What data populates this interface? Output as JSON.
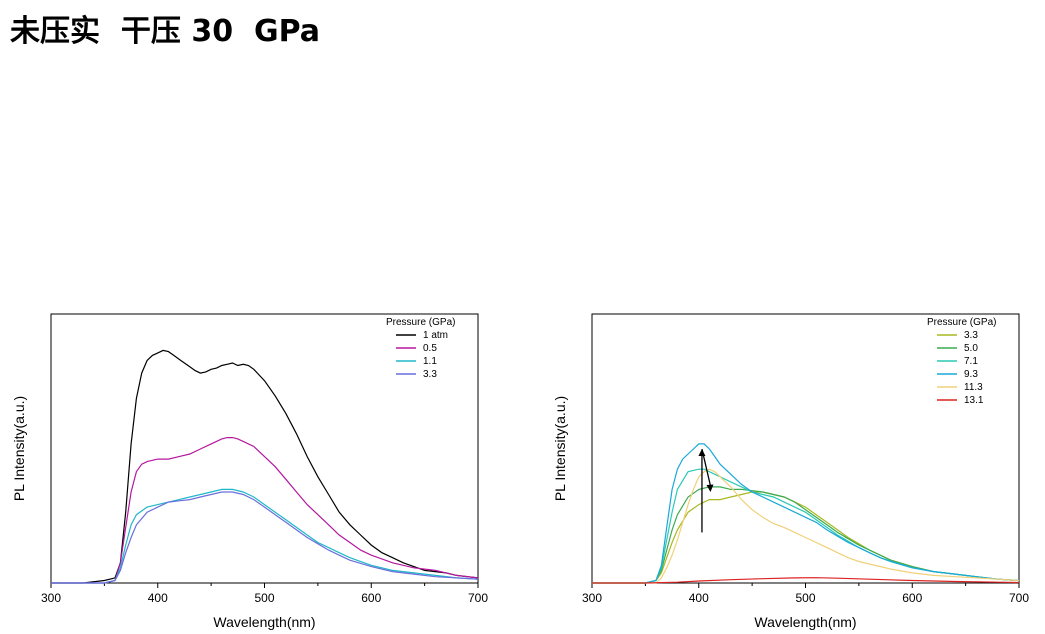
{
  "title": "未压实  干压 30  GPa",
  "chart_data": [
    {
      "type": "line",
      "xlabel": "Wavelength(nm)",
      "ylabel": "PL Intensity(a.u.)",
      "xlim": [
        300,
        700
      ],
      "ylim": [
        0,
        1.0
      ],
      "xticks": [
        "300",
        "400",
        "500",
        "600",
        "700"
      ],
      "legend_title": "Pressure (GPa)",
      "legend_position": "top-right",
      "series": [
        {
          "name": "1 atm",
          "color": "#000000",
          "x": [
            300,
            330,
            350,
            360,
            365,
            370,
            375,
            380,
            385,
            390,
            395,
            400,
            405,
            410,
            415,
            420,
            425,
            430,
            435,
            440,
            445,
            450,
            455,
            460,
            465,
            470,
            475,
            480,
            485,
            490,
            500,
            510,
            520,
            530,
            540,
            550,
            560,
            570,
            580,
            590,
            600,
            610,
            620,
            630,
            640,
            650,
            660,
            670,
            680,
            690,
            700
          ],
          "y": [
            0,
            0,
            0.01,
            0.02,
            0.08,
            0.28,
            0.55,
            0.73,
            0.83,
            0.88,
            0.9,
            0.91,
            0.92,
            0.915,
            0.9,
            0.885,
            0.87,
            0.855,
            0.84,
            0.83,
            0.835,
            0.845,
            0.85,
            0.86,
            0.865,
            0.87,
            0.86,
            0.865,
            0.86,
            0.845,
            0.8,
            0.74,
            0.67,
            0.59,
            0.5,
            0.42,
            0.35,
            0.28,
            0.23,
            0.19,
            0.15,
            0.12,
            0.1,
            0.08,
            0.065,
            0.05,
            0.045,
            0.04,
            0.03,
            0.025,
            0.02
          ]
        },
        {
          "name": "0.5",
          "color": "#b5179e",
          "x": [
            300,
            330,
            350,
            360,
            365,
            370,
            375,
            380,
            385,
            390,
            400,
            410,
            420,
            430,
            440,
            450,
            460,
            465,
            470,
            475,
            480,
            490,
            500,
            510,
            520,
            530,
            540,
            550,
            560,
            570,
            580,
            590,
            600,
            620,
            640,
            660,
            680,
            700
          ],
          "y": [
            0,
            0,
            0,
            0.01,
            0.08,
            0.22,
            0.36,
            0.44,
            0.47,
            0.48,
            0.49,
            0.49,
            0.5,
            0.51,
            0.53,
            0.55,
            0.57,
            0.575,
            0.575,
            0.57,
            0.56,
            0.54,
            0.5,
            0.46,
            0.41,
            0.36,
            0.31,
            0.27,
            0.23,
            0.19,
            0.16,
            0.13,
            0.11,
            0.08,
            0.06,
            0.05,
            0.03,
            0.02
          ]
        },
        {
          "name": "1.1",
          "color": "#20b8c8",
          "x": [
            300,
            330,
            350,
            360,
            365,
            370,
            375,
            380,
            390,
            400,
            410,
            420,
            430,
            440,
            450,
            460,
            465,
            470,
            480,
            490,
            500,
            510,
            520,
            530,
            540,
            550,
            560,
            570,
            580,
            600,
            620,
            640,
            660,
            680,
            700
          ],
          "y": [
            0,
            0,
            0,
            0.01,
            0.06,
            0.15,
            0.23,
            0.27,
            0.3,
            0.31,
            0.32,
            0.33,
            0.34,
            0.35,
            0.36,
            0.37,
            0.37,
            0.37,
            0.36,
            0.34,
            0.31,
            0.28,
            0.25,
            0.22,
            0.19,
            0.16,
            0.14,
            0.12,
            0.1,
            0.07,
            0.05,
            0.04,
            0.03,
            0.02,
            0.015
          ]
        },
        {
          "name": "3.3",
          "color": "#6a6fdc",
          "x": [
            300,
            330,
            350,
            360,
            365,
            370,
            375,
            380,
            390,
            400,
            410,
            420,
            430,
            440,
            450,
            460,
            470,
            480,
            490,
            500,
            510,
            520,
            530,
            540,
            550,
            560,
            570,
            580,
            600,
            620,
            640,
            660,
            680,
            700
          ],
          "y": [
            0,
            0,
            0,
            0.01,
            0.05,
            0.12,
            0.18,
            0.23,
            0.28,
            0.3,
            0.32,
            0.325,
            0.33,
            0.34,
            0.35,
            0.36,
            0.36,
            0.35,
            0.33,
            0.3,
            0.27,
            0.24,
            0.21,
            0.18,
            0.155,
            0.13,
            0.11,
            0.09,
            0.065,
            0.045,
            0.035,
            0.025,
            0.02,
            0.015
          ]
        }
      ]
    },
    {
      "type": "line",
      "xlabel": "Wavelength(nm)",
      "ylabel": "PL Intensity(a.u.)",
      "xlim": [
        300,
        700
      ],
      "ylim": [
        0,
        1.0
      ],
      "xticks": [
        "300",
        "400",
        "500",
        "600",
        "700"
      ],
      "legend_title": "Pressure (GPa)",
      "legend_position": "top-right",
      "annotations": [
        "arrow up at ~403 nm",
        "arrow down at ~410 nm"
      ],
      "series": [
        {
          "name": "3.3",
          "color": "#a8b820",
          "x": [
            300,
            350,
            360,
            365,
            370,
            375,
            380,
            390,
            400,
            410,
            420,
            430,
            440,
            450,
            460,
            470,
            480,
            490,
            500,
            510,
            520,
            530,
            540,
            550,
            560,
            570,
            580,
            600,
            620,
            640,
            660,
            680,
            700
          ],
          "y": [
            0,
            0,
            0.01,
            0.04,
            0.1,
            0.16,
            0.21,
            0.28,
            0.31,
            0.33,
            0.33,
            0.34,
            0.35,
            0.36,
            0.36,
            0.35,
            0.34,
            0.32,
            0.3,
            0.27,
            0.24,
            0.21,
            0.18,
            0.155,
            0.13,
            0.11,
            0.09,
            0.065,
            0.045,
            0.035,
            0.025,
            0.015,
            0.01
          ]
        },
        {
          "name": "5.0",
          "color": "#3caa50",
          "x": [
            300,
            350,
            360,
            365,
            370,
            375,
            380,
            390,
            400,
            410,
            420,
            430,
            440,
            450,
            460,
            470,
            480,
            490,
            500,
            510,
            520,
            530,
            540,
            550,
            560,
            570,
            580,
            600,
            620,
            640,
            660,
            680,
            700
          ],
          "y": [
            0,
            0,
            0.01,
            0.05,
            0.13,
            0.21,
            0.27,
            0.34,
            0.37,
            0.38,
            0.38,
            0.37,
            0.37,
            0.365,
            0.36,
            0.35,
            0.34,
            0.32,
            0.29,
            0.26,
            0.23,
            0.2,
            0.175,
            0.15,
            0.13,
            0.11,
            0.09,
            0.065,
            0.045,
            0.035,
            0.025,
            0.015,
            0.01
          ]
        },
        {
          "name": "7.1",
          "color": "#2cc9b5",
          "x": [
            300,
            350,
            360,
            365,
            370,
            375,
            380,
            390,
            400,
            405,
            410,
            420,
            430,
            440,
            450,
            460,
            470,
            480,
            490,
            500,
            510,
            520,
            530,
            540,
            550,
            560,
            570,
            580,
            600,
            620,
            640,
            660,
            680,
            700
          ],
          "y": [
            0,
            0,
            0.01,
            0.06,
            0.17,
            0.28,
            0.37,
            0.44,
            0.45,
            0.45,
            0.44,
            0.42,
            0.4,
            0.38,
            0.36,
            0.35,
            0.34,
            0.32,
            0.3,
            0.28,
            0.25,
            0.22,
            0.19,
            0.165,
            0.14,
            0.12,
            0.1,
            0.085,
            0.06,
            0.045,
            0.035,
            0.025,
            0.015,
            0.01
          ]
        },
        {
          "name": "9.3",
          "color": "#1aa8d8",
          "x": [
            300,
            350,
            360,
            365,
            370,
            375,
            380,
            385,
            390,
            395,
            400,
            405,
            410,
            415,
            420,
            430,
            440,
            450,
            460,
            470,
            480,
            490,
            500,
            510,
            520,
            530,
            540,
            550,
            560,
            570,
            580,
            600,
            620,
            640,
            660,
            680,
            700
          ],
          "y": [
            0,
            0,
            0.01,
            0.07,
            0.22,
            0.37,
            0.45,
            0.49,
            0.51,
            0.53,
            0.55,
            0.55,
            0.53,
            0.5,
            0.47,
            0.43,
            0.39,
            0.36,
            0.34,
            0.32,
            0.3,
            0.28,
            0.26,
            0.24,
            0.21,
            0.185,
            0.16,
            0.14,
            0.12,
            0.1,
            0.085,
            0.06,
            0.045,
            0.035,
            0.025,
            0.015,
            0.01
          ]
        },
        {
          "name": "11.3",
          "color": "#f0d078",
          "x": [
            300,
            360,
            365,
            370,
            375,
            380,
            385,
            390,
            395,
            400,
            405,
            410,
            415,
            420,
            430,
            440,
            450,
            460,
            470,
            480,
            490,
            500,
            510,
            520,
            530,
            540,
            550,
            560,
            580,
            600,
            620,
            640,
            660,
            680,
            700
          ],
          "y": [
            0,
            0,
            0.02,
            0.06,
            0.11,
            0.17,
            0.24,
            0.31,
            0.37,
            0.42,
            0.44,
            0.45,
            0.44,
            0.42,
            0.38,
            0.33,
            0.29,
            0.26,
            0.235,
            0.22,
            0.2,
            0.18,
            0.16,
            0.14,
            0.12,
            0.1,
            0.085,
            0.075,
            0.055,
            0.04,
            0.03,
            0.025,
            0.02,
            0.015,
            0.01
          ]
        },
        {
          "name": "13.1",
          "color": "#dd2222",
          "x": [
            300,
            350,
            380,
            400,
            430,
            460,
            490,
            510,
            530,
            560,
            600,
            640,
            680,
            700
          ],
          "y": [
            0,
            0,
            0.003,
            0.008,
            0.013,
            0.017,
            0.02,
            0.021,
            0.019,
            0.015,
            0.01,
            0.006,
            0.003,
            0.002
          ]
        }
      ]
    }
  ]
}
